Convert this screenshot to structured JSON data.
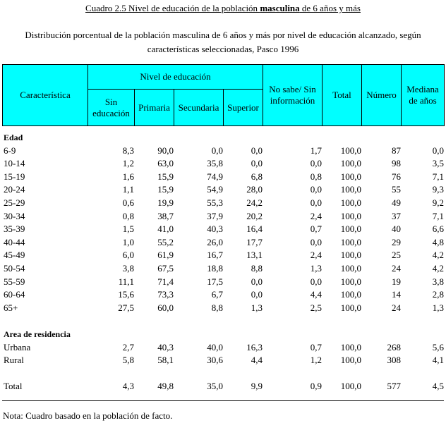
{
  "title": {
    "prefix": "Cuadro 2.5  Nivel de educación de la población ",
    "bold": "masculina",
    "suffix": " de 6 años y más"
  },
  "subtitle": [
    "Distribución porcentual de la población masculina de 6 años y más por nivel de educación alcanzado, según",
    "características seleccionadas, Pasco 1996"
  ],
  "header": {
    "caracteristica": "Característica",
    "nivel": "Nivel de educación",
    "sin": "Sin educación",
    "primaria": "Primaria",
    "secundaria": "Secundaria",
    "superior": "Superior",
    "nosabe": "No sabe/ Sin información",
    "total": "Total",
    "numero": "Número",
    "mediana": "Mediana de años"
  },
  "header_color": "#00ffff",
  "sections": [
    {
      "label": "Edad",
      "rows": [
        [
          "6-9",
          "8,3",
          "90,0",
          "0,0",
          "0,0",
          "1,7",
          "100,0",
          "87",
          "0,0"
        ],
        [
          "10-14",
          "1,2",
          "63,0",
          "35,8",
          "0,0",
          "0,0",
          "100,0",
          "98",
          "3,5"
        ],
        [
          "15-19",
          "1,6",
          "15,9",
          "74,9",
          "6,8",
          "0,8",
          "100,0",
          "76",
          "7,1"
        ],
        [
          "20-24",
          "1,1",
          "15,9",
          "54,9",
          "28,0",
          "0,0",
          "100,0",
          "55",
          "9,3"
        ],
        [
          "25-29",
          "0,6",
          "19,9",
          "55,3",
          "24,2",
          "0,0",
          "100,0",
          "49",
          "9,2"
        ],
        [
          "30-34",
          "0,8",
          "38,7",
          "37,9",
          "20,2",
          "2,4",
          "100,0",
          "37",
          "7,1"
        ],
        [
          "35-39",
          "1,5",
          "41,0",
          "40,3",
          "16,4",
          "0,7",
          "100,0",
          "40",
          "6,6"
        ],
        [
          "40-44",
          "1,0",
          "55,2",
          "26,0",
          "17,7",
          "0,0",
          "100,0",
          "29",
          "4,8"
        ],
        [
          "45-49",
          "6,0",
          "61,9",
          "16,7",
          "13,1",
          "2,4",
          "100,0",
          "25",
          "4,2"
        ],
        [
          "50-54",
          "3,8",
          "67,5",
          "18,8",
          "8,8",
          "1,3",
          "100,0",
          "24",
          "4,2"
        ],
        [
          "55-59",
          "11,1",
          "71,4",
          "17,5",
          "0,0",
          "0,0",
          "100,0",
          "19",
          "3,8"
        ],
        [
          "60-64",
          "15,6",
          "73,3",
          "6,7",
          "0,0",
          "4,4",
          "100,0",
          "14",
          "2,8"
        ],
        [
          "65+",
          "27,5",
          "60,0",
          "8,8",
          "1,3",
          "2,5",
          "100,0",
          "24",
          "1,3"
        ]
      ]
    },
    {
      "label": "Area de residencia",
      "rows": [
        [
          "Urbana",
          "2,7",
          "40,3",
          "40,0",
          "16,3",
          "0,7",
          "100,0",
          "268",
          "5,6"
        ],
        [
          "Rural",
          "5,8",
          "58,1",
          "30,6",
          "4,4",
          "1,2",
          "100,0",
          "308",
          "4,1"
        ]
      ]
    }
  ],
  "total_row": [
    "Total",
    "4,3",
    "49,8",
    "35,0",
    "9,9",
    "0,9",
    "100,0",
    "577",
    "4,5"
  ],
  "note": "Nota: Cuadro basado en la población de facto."
}
